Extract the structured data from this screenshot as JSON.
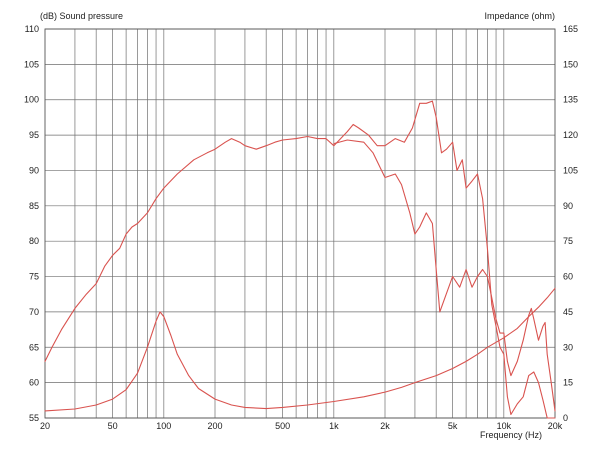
{
  "chart_data": {
    "type": "line",
    "title": "",
    "xlabel": "Frequency (Hz)",
    "ylabel_left": "(dB) Sound pressure",
    "ylabel_right": "Impedance (ohm)",
    "x_scale": "log",
    "xlim": [
      20,
      20000
    ],
    "ylim_left": [
      55,
      110
    ],
    "ylim_right": [
      0,
      165
    ],
    "grid": true,
    "x_tick_labels": [
      {
        "value": 20,
        "label": "20"
      },
      {
        "value": 50,
        "label": "50"
      },
      {
        "value": 100,
        "label": "100"
      },
      {
        "value": 200,
        "label": "200"
      },
      {
        "value": 500,
        "label": "500"
      },
      {
        "value": 1000,
        "label": "1k"
      },
      {
        "value": 2000,
        "label": "2k"
      },
      {
        "value": 5000,
        "label": "5k"
      },
      {
        "value": 10000,
        "label": "10k"
      },
      {
        "value": 20000,
        "label": "20k"
      }
    ],
    "y_left_ticks": [
      55,
      60,
      65,
      70,
      75,
      80,
      85,
      90,
      95,
      100,
      105,
      110
    ],
    "y_right_ticks": [
      0,
      15,
      30,
      45,
      60,
      75,
      90,
      105,
      120,
      135,
      150,
      165
    ],
    "series": [
      {
        "axis": "left",
        "color": "#d9534f",
        "points": [
          [
            20,
            63
          ],
          [
            22,
            65
          ],
          [
            25,
            67.5
          ],
          [
            30,
            70.5
          ],
          [
            35,
            72.5
          ],
          [
            40,
            74
          ],
          [
            45,
            76.5
          ],
          [
            50,
            78
          ],
          [
            55,
            79
          ],
          [
            60,
            81
          ],
          [
            65,
            82
          ],
          [
            70,
            82.5
          ],
          [
            80,
            84
          ],
          [
            90,
            86
          ],
          [
            100,
            87.5
          ],
          [
            120,
            89.5
          ],
          [
            150,
            91.5
          ],
          [
            180,
            92.5
          ],
          [
            200,
            93
          ],
          [
            230,
            94
          ],
          [
            250,
            94.5
          ],
          [
            280,
            94
          ],
          [
            300,
            93.5
          ],
          [
            350,
            93
          ],
          [
            400,
            93.5
          ],
          [
            450,
            94
          ],
          [
            500,
            94.3
          ],
          [
            600,
            94.5
          ],
          [
            700,
            94.8
          ],
          [
            800,
            94.5
          ],
          [
            900,
            94.5
          ],
          [
            1000,
            93.5
          ],
          [
            1200,
            95.5
          ],
          [
            1300,
            96.5
          ],
          [
            1400,
            96
          ],
          [
            1600,
            95
          ],
          [
            1800,
            93.5
          ],
          [
            2000,
            93.5
          ],
          [
            2300,
            94.5
          ],
          [
            2600,
            94
          ],
          [
            2900,
            96
          ],
          [
            3200,
            99.5
          ],
          [
            3500,
            99.5
          ],
          [
            3800,
            99.8
          ],
          [
            4000,
            97.5
          ],
          [
            4300,
            92.5
          ],
          [
            4600,
            93
          ],
          [
            5000,
            94
          ],
          [
            5300,
            90
          ],
          [
            5700,
            91.5
          ],
          [
            6000,
            87.5
          ],
          [
            6500,
            88.5
          ],
          [
            7000,
            89.5
          ],
          [
            7500,
            86
          ],
          [
            8000,
            79
          ],
          [
            8500,
            71
          ],
          [
            9000,
            68
          ],
          [
            9500,
            65
          ],
          [
            10000,
            64
          ],
          [
            10500,
            58
          ],
          [
            11000,
            55.5
          ],
          [
            12000,
            57
          ],
          [
            13000,
            58
          ],
          [
            14000,
            61
          ],
          [
            15000,
            61.5
          ],
          [
            16000,
            60
          ],
          [
            17000,
            57.5
          ],
          [
            18000,
            55
          ],
          [
            20000,
            55
          ]
        ]
      },
      {
        "axis": "left",
        "color": "#d9534f",
        "points": [
          [
            1000,
            93.8
          ],
          [
            1200,
            94.3
          ],
          [
            1500,
            94
          ],
          [
            1700,
            92.5
          ],
          [
            2000,
            89
          ],
          [
            2300,
            89.5
          ],
          [
            2500,
            88
          ],
          [
            2800,
            84
          ],
          [
            3000,
            81
          ],
          [
            3200,
            82
          ],
          [
            3500,
            84
          ],
          [
            3800,
            82.5
          ],
          [
            4000,
            76
          ],
          [
            4200,
            70
          ],
          [
            4500,
            72
          ],
          [
            5000,
            75
          ],
          [
            5500,
            73.5
          ],
          [
            6000,
            76
          ],
          [
            6500,
            73.5
          ],
          [
            7000,
            75
          ],
          [
            7500,
            76
          ],
          [
            8000,
            75
          ],
          [
            8500,
            72
          ],
          [
            9000,
            69
          ],
          [
            9500,
            67
          ],
          [
            10000,
            67
          ],
          [
            10500,
            63
          ],
          [
            11000,
            61
          ],
          [
            12000,
            63
          ],
          [
            13000,
            66
          ],
          [
            14000,
            69.5
          ],
          [
            14500,
            70.5
          ],
          [
            15000,
            69
          ],
          [
            16000,
            66
          ],
          [
            17000,
            68
          ],
          [
            17500,
            68.5
          ],
          [
            18000,
            64
          ],
          [
            19000,
            60
          ],
          [
            20000,
            56
          ]
        ]
      },
      {
        "axis": "right",
        "color": "#d9534f",
        "points": [
          [
            20,
            3
          ],
          [
            30,
            3.8
          ],
          [
            40,
            5.5
          ],
          [
            50,
            8
          ],
          [
            60,
            12
          ],
          [
            70,
            19
          ],
          [
            80,
            30
          ],
          [
            90,
            41
          ],
          [
            95,
            45
          ],
          [
            100,
            43
          ],
          [
            110,
            35
          ],
          [
            120,
            27
          ],
          [
            140,
            18
          ],
          [
            160,
            12.5
          ],
          [
            200,
            8
          ],
          [
            250,
            5.5
          ],
          [
            300,
            4.5
          ],
          [
            400,
            4
          ],
          [
            500,
            4.5
          ],
          [
            700,
            5.5
          ],
          [
            1000,
            7
          ],
          [
            1500,
            9
          ],
          [
            2000,
            11
          ],
          [
            2500,
            13
          ],
          [
            3000,
            15
          ],
          [
            4000,
            18
          ],
          [
            5000,
            21
          ],
          [
            6000,
            24
          ],
          [
            7000,
            27
          ],
          [
            8000,
            30
          ],
          [
            10000,
            34
          ],
          [
            12000,
            38
          ],
          [
            14000,
            43
          ],
          [
            16000,
            47
          ],
          [
            18000,
            51
          ],
          [
            20000,
            55
          ]
        ]
      }
    ]
  }
}
